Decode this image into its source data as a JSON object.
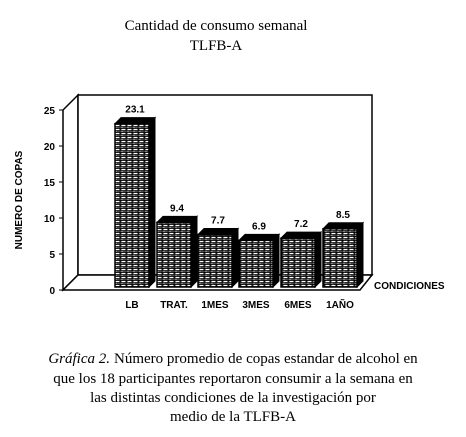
{
  "chart_data": {
    "type": "bar3d",
    "title": [
      "Cantidad de consumo semanal",
      "TLFB-A"
    ],
    "y_label": "NUMERO DE COPAS",
    "x_label": "CONDICIONES",
    "categories": [
      "LB",
      "TRAT.",
      "1MES",
      "3MES",
      "6MES",
      "1AÑO"
    ],
    "values": [
      23.1,
      9.4,
      7.7,
      6.9,
      7.2,
      8.5
    ],
    "color": "#000000",
    "ylim": [
      0,
      25
    ],
    "yticks": [
      0,
      5,
      10,
      15,
      20,
      25
    ],
    "caption_label": "Gráfica 2.",
    "caption": [
      "Número promedio de copas estandar de alcohol en",
      "que los 18 participantes reportaron consumir a la semana en",
      "las distintas condiciones de la investigación por",
      "medio de la TLFB-A"
    ]
  }
}
